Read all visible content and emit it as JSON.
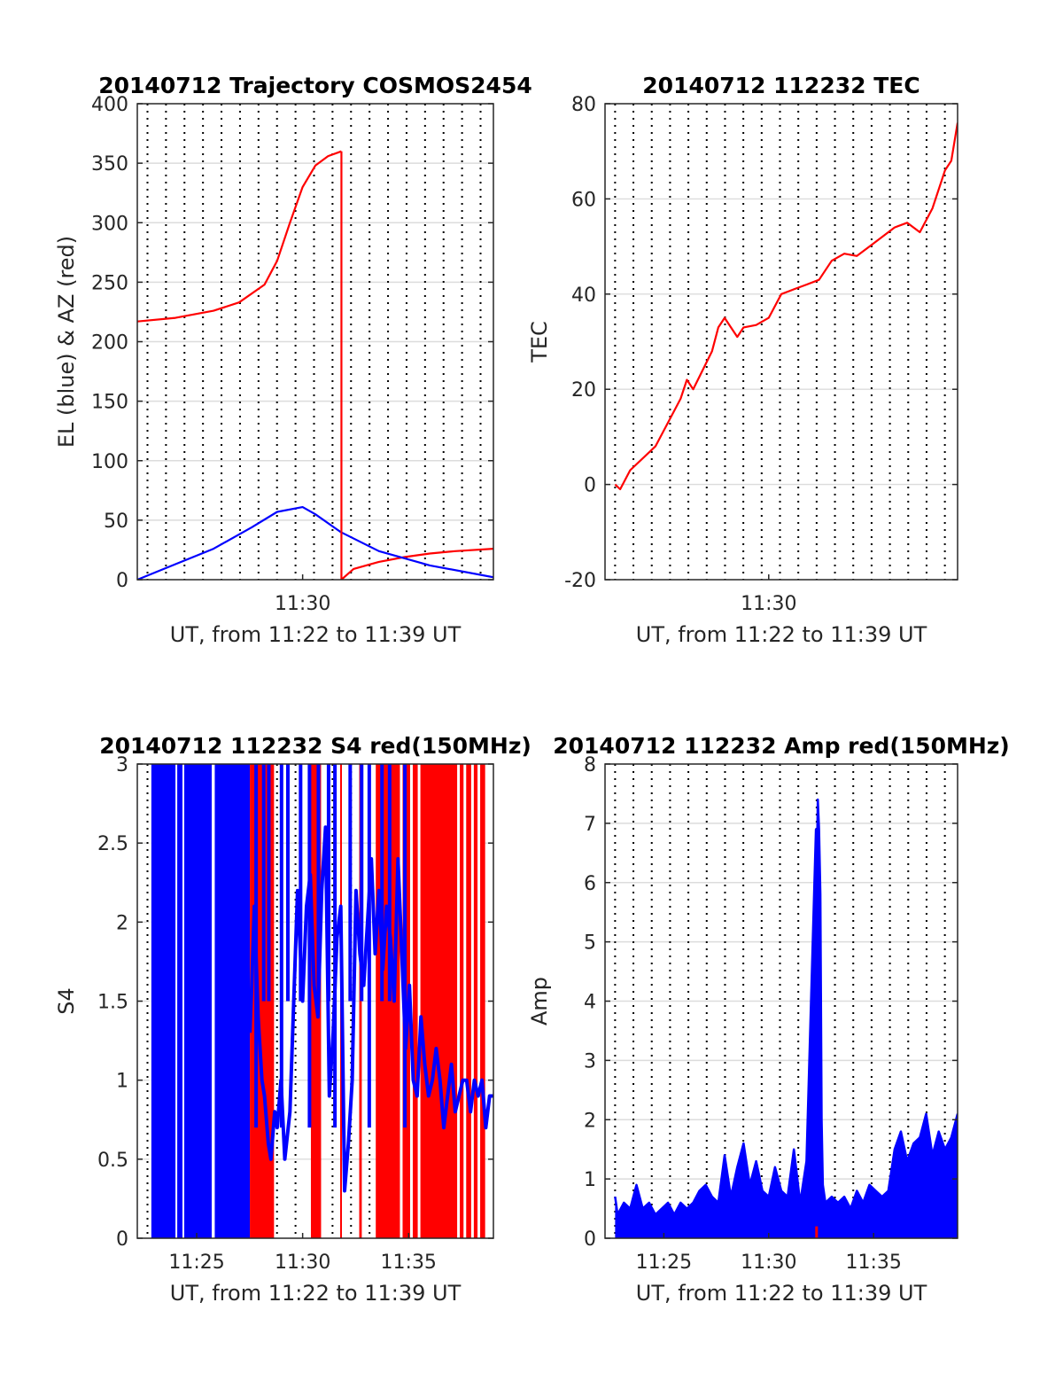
{
  "chart_data": [
    {
      "type": "line",
      "title": "20140712 Trajectory COSMOS2454",
      "xlabel": "UT, from 11:22 to 11:39 UT",
      "ylabel": "EL (blue) & AZ (red)",
      "xlim": [
        11.37,
        11.65
      ],
      "ylim": [
        0,
        400
      ],
      "yticks": [
        0,
        50,
        100,
        150,
        200,
        250,
        300,
        350,
        400
      ],
      "xticks": [
        {
          "v": 11.5,
          "label": "11:30"
        }
      ],
      "grid": "dotted",
      "series": [
        {
          "color": "#ff0000",
          "x": [
            11.37,
            11.4,
            11.43,
            11.45,
            11.47,
            11.48,
            11.49,
            11.5,
            11.51,
            11.52,
            11.5305
          ],
          "y": [
            217,
            220,
            226,
            233,
            248,
            268,
            300,
            330,
            348,
            356,
            360
          ]
        },
        {
          "color": "#ff0000",
          "x": [
            11.5305,
            11.54,
            11.56,
            11.58,
            11.6,
            11.62,
            11.65
          ],
          "y": [
            0,
            9,
            15,
            19,
            22,
            24,
            26
          ]
        },
        {
          "color": "#0000ff",
          "x": [
            11.37,
            11.4,
            11.43,
            11.46,
            11.48,
            11.5,
            11.51,
            11.53,
            11.56,
            11.6,
            11.65
          ],
          "y": [
            0,
            13,
            26,
            44,
            57,
            61,
            55,
            40,
            24,
            12,
            2
          ]
        }
      ]
    },
    {
      "type": "line",
      "title": "20140712 112232 TEC",
      "xlabel": "UT, from 11:22 to 11:39 UT",
      "ylabel": "TEC",
      "xlim": [
        11.37,
        11.65
      ],
      "ylim": [
        -20,
        80
      ],
      "yticks": [
        -20,
        0,
        20,
        40,
        60,
        80
      ],
      "xticks": [
        {
          "v": 11.5,
          "label": "11:30"
        }
      ],
      "grid": "dotted",
      "series": [
        {
          "color": "#ff0000",
          "x": [
            11.378,
            11.382,
            11.39,
            11.41,
            11.43,
            11.435,
            11.44,
            11.455,
            11.46,
            11.465,
            11.475,
            11.48,
            11.49,
            11.5,
            11.51,
            11.52,
            11.53,
            11.54,
            11.55,
            11.56,
            11.57,
            11.58,
            11.59,
            11.6,
            11.61,
            11.62,
            11.63,
            11.64,
            11.645,
            11.65
          ],
          "y": [
            0,
            -1,
            3,
            8,
            18,
            22,
            20,
            28,
            33,
            35,
            31,
            33,
            33.5,
            35,
            40,
            41,
            42,
            43,
            47,
            48.5,
            48,
            50,
            52,
            54,
            55,
            53,
            58,
            66,
            68,
            76
          ]
        }
      ]
    },
    {
      "type": "line",
      "title": "20140712 112232 S4 red(150MHz)",
      "xlabel": "UT, from 11:22 to 11:39 UT",
      "ylabel": "S4",
      "xlim": [
        11.37,
        11.65
      ],
      "ylim": [
        0,
        3
      ],
      "yticks": [
        0,
        0.5,
        1,
        1.5,
        2,
        2.5,
        3
      ],
      "xticks": [
        {
          "v": 11.4167,
          "label": "11:25"
        },
        {
          "v": 11.5,
          "label": "11:30"
        },
        {
          "v": 11.5833,
          "label": "11:35"
        }
      ],
      "grid": "dotted",
      "red_fill_ranges": [
        [
          11.4585,
          11.4775
        ],
        [
          11.5065,
          11.5145
        ],
        [
          11.5295,
          11.5305
        ],
        [
          11.5445,
          11.5465
        ],
        [
          11.558,
          11.6435
        ],
        [
          11.5575,
          11.559
        ],
        [
          11.5695,
          11.571
        ]
      ],
      "blue_fill_ranges": [
        [
          11.381,
          11.4,
          11.405,
          11.4285
        ],
        [
          11.4305,
          11.4585
        ]
      ],
      "blue_trace": {
        "x": [
          11.4585,
          11.46,
          11.462,
          11.465,
          11.468,
          11.47,
          11.473,
          11.475,
          11.478,
          11.48,
          11.483,
          11.486,
          11.49,
          11.493,
          11.496,
          11.5,
          11.503,
          11.506,
          11.509,
          11.512,
          11.515,
          11.518,
          11.521,
          11.524,
          11.527,
          11.53,
          11.533,
          11.536,
          11.539,
          11.542,
          11.545,
          11.548,
          11.551,
          11.554,
          11.557,
          11.56,
          11.563,
          11.566,
          11.569,
          11.572,
          11.575,
          11.578,
          11.581,
          11.584,
          11.587,
          11.59,
          11.593,
          11.596,
          11.599,
          11.602,
          11.605,
          11.608,
          11.611,
          11.614,
          11.617,
          11.62,
          11.623,
          11.626,
          11.629,
          11.632,
          11.635,
          11.638,
          11.641,
          11.644,
          11.647,
          11.65
        ],
        "y": [
          1.3,
          1.6,
          2.1,
          1.4,
          1.0,
          0.9,
          0.6,
          0.5,
          0.8,
          0.7,
          1.0,
          0.5,
          0.8,
          1.5,
          2.2,
          1.5,
          2.1,
          2.3,
          1.6,
          1.4,
          2.2,
          2.6,
          0.9,
          1.3,
          1.9,
          2.1,
          0.3,
          0.6,
          1.0,
          2.2,
          1.8,
          1.6,
          2.0,
          2.4,
          1.8,
          2.2,
          1.7,
          2.1,
          1.9,
          1.5,
          2.4,
          1.8,
          1.2,
          1.6,
          1.0,
          0.9,
          1.4,
          1.1,
          0.9,
          1.0,
          1.2,
          1.0,
          0.7,
          0.9,
          1.1,
          0.8,
          0.9,
          1.0,
          1.0,
          0.8,
          1.0,
          0.9,
          1.0,
          0.7,
          0.9,
          0.9
        ]
      }
    },
    {
      "type": "line",
      "title": "20140712 112232 Amp red(150MHz)",
      "xlabel": "UT, from 11:22 to 11:39 UT",
      "ylabel": "Amp",
      "xlim": [
        11.37,
        11.65
      ],
      "ylim": [
        0,
        8
      ],
      "yticks": [
        0,
        1,
        2,
        3,
        4,
        5,
        6,
        7,
        8
      ],
      "xticks": [
        {
          "v": 11.4167,
          "label": "11:25"
        },
        {
          "v": 11.5,
          "label": "11:30"
        },
        {
          "v": 11.5833,
          "label": "11:35"
        }
      ],
      "grid": "dotted",
      "series": [
        {
          "color": "#0000ff",
          "x": [
            11.378,
            11.38,
            11.385,
            11.39,
            11.395,
            11.4,
            11.405,
            11.41,
            11.415,
            11.42,
            11.425,
            11.43,
            11.435,
            11.44,
            11.445,
            11.45,
            11.455,
            11.46,
            11.465,
            11.47,
            11.475,
            11.48,
            11.485,
            11.49,
            11.495,
            11.5,
            11.505,
            11.51,
            11.515,
            11.52,
            11.525,
            11.53,
            11.5375,
            11.538,
            11.539,
            11.54,
            11.541,
            11.542,
            11.543,
            11.545,
            11.55,
            11.555,
            11.56,
            11.565,
            11.57,
            11.575,
            11.58,
            11.585,
            11.59,
            11.595,
            11.6,
            11.605,
            11.61,
            11.615,
            11.62,
            11.625,
            11.63,
            11.635,
            11.64,
            11.645,
            11.65
          ],
          "y": [
            0.7,
            0.4,
            0.6,
            0.5,
            0.9,
            0.5,
            0.6,
            0.4,
            0.5,
            0.6,
            0.4,
            0.6,
            0.5,
            0.6,
            0.8,
            0.9,
            0.7,
            0.6,
            1.4,
            0.7,
            1.2,
            1.6,
            0.9,
            1.3,
            0.8,
            0.7,
            1.2,
            0.8,
            0.7,
            1.5,
            0.6,
            1.3,
            6.9,
            6.0,
            7.4,
            6.9,
            5.8,
            2.0,
            0.9,
            0.6,
            0.7,
            0.6,
            0.7,
            0.5,
            0.8,
            0.6,
            0.9,
            0.8,
            0.7,
            0.8,
            1.5,
            1.8,
            1.3,
            1.6,
            1.7,
            2.1,
            1.4,
            1.8,
            1.5,
            1.7,
            2.1
          ]
        }
      ]
    }
  ]
}
